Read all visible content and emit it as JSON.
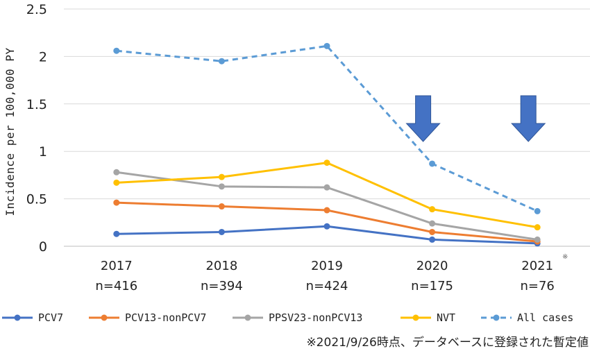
{
  "chart_data": {
    "type": "line",
    "title": "",
    "xlabel": "",
    "ylabel": "Incidence per 100,000 PY",
    "categories": [
      "2017",
      "2018",
      "2019",
      "2020",
      "2021"
    ],
    "category_counts": [
      "n=416",
      "n=394",
      "n=424",
      "n=175",
      "n=76"
    ],
    "y_ticks": [
      "0",
      "0.5",
      "1",
      "1.5",
      "2",
      "2.5"
    ],
    "ylim": [
      0,
      2.5
    ],
    "grid": "horizontal",
    "legend_position": "bottom",
    "series": [
      {
        "name": "PCV7",
        "values": [
          0.13,
          0.15,
          0.21,
          0.07,
          0.03
        ],
        "color": "#4472C4",
        "style": "solid"
      },
      {
        "name": "PCV13-nonPCV7",
        "values": [
          0.46,
          0.42,
          0.38,
          0.15,
          0.05
        ],
        "color": "#ED7D31",
        "style": "solid"
      },
      {
        "name": "PPSV23-nonPCV13",
        "values": [
          0.78,
          0.63,
          0.62,
          0.24,
          0.07
        ],
        "color": "#A5A5A5",
        "style": "solid"
      },
      {
        "name": "NVT",
        "values": [
          0.67,
          0.73,
          0.88,
          0.39,
          0.2
        ],
        "color": "#FFC000",
        "style": "solid"
      },
      {
        "name": "All cases",
        "values": [
          2.06,
          1.95,
          2.11,
          0.87,
          0.37
        ],
        "color": "#5B9BD5",
        "style": "dashed"
      }
    ],
    "annotations": {
      "arrow_categories": [
        "2020",
        "2021"
      ],
      "arrow_color": "#4472C4",
      "footnote_mark": "※",
      "footnote_mark_category": "2021",
      "footnote": "※2021/9/26時点、データベースに登録された暫定値"
    }
  }
}
